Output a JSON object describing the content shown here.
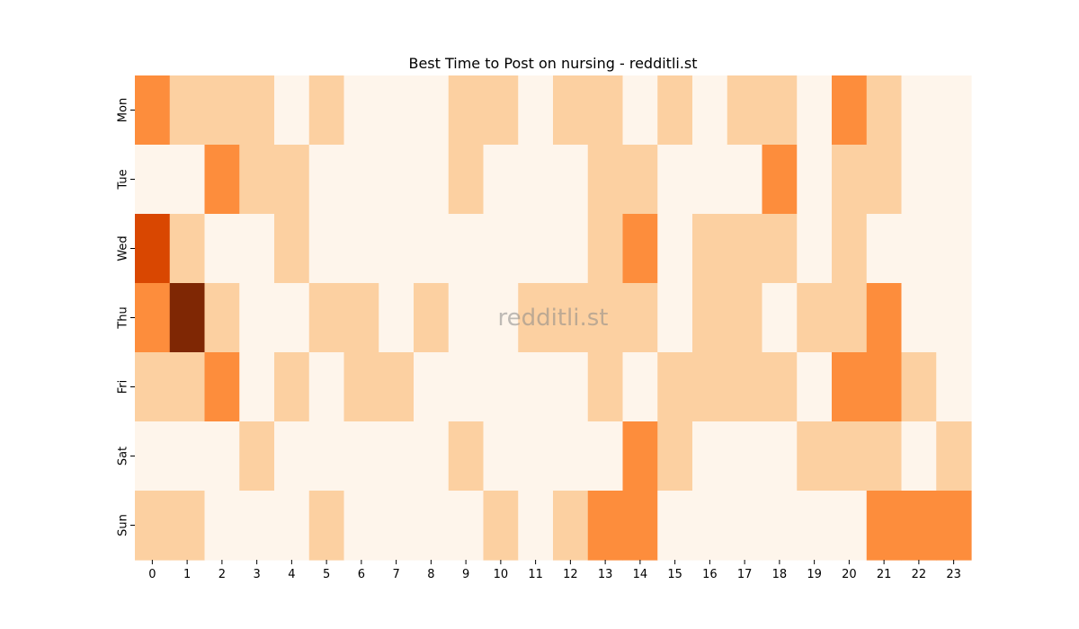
{
  "chart_data": {
    "type": "heatmap",
    "title": "Best Time to Post on nursing - redditli.st",
    "watermark": "redditli.st",
    "x": [
      "0",
      "1",
      "2",
      "3",
      "4",
      "5",
      "6",
      "7",
      "8",
      "9",
      "10",
      "11",
      "12",
      "13",
      "14",
      "15",
      "16",
      "17",
      "18",
      "19",
      "20",
      "21",
      "22",
      "23"
    ],
    "y": [
      "Mon",
      "Tue",
      "Wed",
      "Thu",
      "Fri",
      "Sat",
      "Sun"
    ],
    "values": [
      [
        3,
        1,
        1,
        1,
        0,
        1,
        0,
        0,
        0,
        1,
        1,
        0,
        1,
        1,
        0,
        1,
        0,
        1,
        1,
        0,
        3,
        1,
        0,
        0
      ],
      [
        0,
        0,
        3,
        1,
        1,
        0,
        0,
        0,
        0,
        1,
        0,
        0,
        0,
        1,
        1,
        0,
        0,
        0,
        3,
        0,
        1,
        1,
        0,
        0
      ],
      [
        5,
        1,
        0,
        0,
        1,
        0,
        0,
        0,
        0,
        0,
        0,
        0,
        0,
        1,
        3,
        0,
        1,
        1,
        1,
        0,
        1,
        0,
        0,
        0
      ],
      [
        3,
        7,
        1,
        0,
        0,
        1,
        1,
        0,
        1,
        0,
        0,
        1,
        1,
        1,
        1,
        0,
        1,
        1,
        0,
        1,
        1,
        3,
        0,
        0
      ],
      [
        1,
        1,
        3,
        0,
        1,
        0,
        1,
        1,
        0,
        0,
        0,
        0,
        0,
        1,
        0,
        1,
        1,
        1,
        1,
        0,
        3,
        3,
        1,
        0
      ],
      [
        0,
        0,
        0,
        1,
        0,
        0,
        0,
        0,
        0,
        1,
        0,
        0,
        0,
        0,
        3,
        1,
        0,
        0,
        0,
        1,
        1,
        1,
        0,
        1
      ],
      [
        1,
        1,
        0,
        0,
        0,
        1,
        0,
        0,
        0,
        0,
        1,
        0,
        1,
        3,
        3,
        0,
        0,
        0,
        0,
        0,
        0,
        3,
        3,
        3
      ]
    ],
    "value_range": [
      0,
      7
    ],
    "colormap": "Oranges",
    "palette": {
      "0": "#fef5eb",
      "1": "#fcd0a1",
      "3": "#fd8d3c",
      "5": "#d94701",
      "7": "#7f2704"
    },
    "grid": false,
    "legend": "none"
  }
}
